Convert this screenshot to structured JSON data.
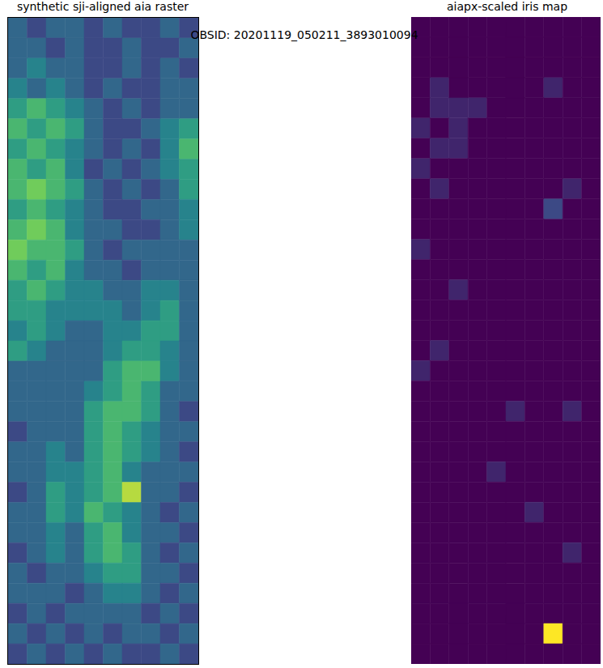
{
  "title": "OBSID: 20201119_050211_3893010094",
  "chart_data": [
    {
      "type": "heatmap",
      "title": "synthetic sji-aligned aia raster",
      "tick_labels": false,
      "color_range": [
        0,
        9
      ],
      "cells": [
        [
          3,
          2,
          3,
          3,
          2,
          3,
          2,
          2,
          3,
          2
        ],
        [
          3,
          3,
          2,
          3,
          2,
          2,
          3,
          2,
          2,
          3
        ],
        [
          3,
          4,
          3,
          3,
          2,
          2,
          3,
          2,
          3,
          2
        ],
        [
          4,
          3,
          4,
          3,
          2,
          3,
          2,
          2,
          3,
          3
        ],
        [
          5,
          6,
          5,
          4,
          3,
          2,
          3,
          2,
          3,
          3
        ],
        [
          6,
          5,
          6,
          5,
          3,
          2,
          2,
          3,
          4,
          5
        ],
        [
          5,
          6,
          5,
          4,
          3,
          2,
          3,
          2,
          4,
          6
        ],
        [
          6,
          5,
          6,
          4,
          2,
          3,
          2,
          3,
          4,
          5
        ],
        [
          6,
          7,
          6,
          5,
          3,
          2,
          3,
          2,
          3,
          5
        ],
        [
          5,
          6,
          5,
          4,
          3,
          2,
          2,
          3,
          3,
          4
        ],
        [
          6,
          7,
          6,
          4,
          3,
          3,
          2,
          2,
          3,
          4
        ],
        [
          7,
          6,
          6,
          5,
          3,
          2,
          3,
          3,
          3,
          3
        ],
        [
          6,
          5,
          6,
          4,
          3,
          3,
          2,
          3,
          3,
          3
        ],
        [
          5,
          6,
          5,
          4,
          4,
          3,
          3,
          4,
          4,
          3
        ],
        [
          5,
          5,
          4,
          4,
          4,
          4,
          3,
          4,
          5,
          3
        ],
        [
          4,
          5,
          4,
          3,
          3,
          4,
          4,
          5,
          5,
          3
        ],
        [
          5,
          4,
          3,
          3,
          3,
          4,
          5,
          5,
          4,
          3
        ],
        [
          3,
          3,
          3,
          3,
          3,
          5,
          6,
          6,
          4,
          3
        ],
        [
          3,
          3,
          3,
          3,
          4,
          5,
          6,
          5,
          3,
          3
        ],
        [
          3,
          3,
          3,
          3,
          5,
          6,
          6,
          5,
          3,
          2
        ],
        [
          2,
          3,
          3,
          3,
          5,
          6,
          5,
          4,
          3,
          3
        ],
        [
          3,
          3,
          4,
          3,
          5,
          6,
          5,
          4,
          3,
          2
        ],
        [
          3,
          3,
          4,
          4,
          5,
          6,
          4,
          3,
          3,
          3
        ],
        [
          2,
          3,
          5,
          4,
          5,
          6,
          8,
          3,
          3,
          2
        ],
        [
          3,
          3,
          5,
          4,
          6,
          5,
          4,
          3,
          2,
          3
        ],
        [
          3,
          3,
          4,
          3,
          5,
          6,
          4,
          3,
          3,
          2
        ],
        [
          2,
          3,
          4,
          3,
          5,
          6,
          5,
          3,
          2,
          3
        ],
        [
          3,
          2,
          3,
          3,
          4,
          5,
          5,
          3,
          3,
          2
        ],
        [
          3,
          3,
          3,
          2,
          3,
          4,
          4,
          3,
          2,
          3
        ],
        [
          2,
          3,
          2,
          3,
          3,
          3,
          3,
          2,
          3,
          2
        ],
        [
          3,
          2,
          3,
          2,
          3,
          2,
          3,
          3,
          2,
          3
        ],
        [
          2,
          3,
          2,
          3,
          2,
          3,
          2,
          2,
          3,
          2
        ]
      ]
    },
    {
      "type": "heatmap",
      "title": "aiapx-scaled iris map",
      "tick_labels": false,
      "color_range": [
        0,
        9
      ],
      "cells": [
        [
          0,
          0,
          0,
          0,
          0,
          0,
          0,
          0,
          0,
          0
        ],
        [
          0,
          0,
          0,
          0,
          0,
          0,
          0,
          0,
          0,
          0
        ],
        [
          0,
          0,
          0,
          0,
          0,
          0,
          0,
          0,
          0,
          0
        ],
        [
          0,
          1,
          0,
          0,
          0,
          0,
          0,
          1,
          0,
          0
        ],
        [
          0,
          1,
          1,
          1,
          0,
          0,
          0,
          0,
          0,
          0
        ],
        [
          1,
          0,
          1,
          0,
          0,
          0,
          0,
          0,
          0,
          0
        ],
        [
          0,
          1,
          1,
          0,
          0,
          0,
          0,
          0,
          0,
          0
        ],
        [
          1,
          0,
          0,
          0,
          0,
          0,
          0,
          0,
          0,
          0
        ],
        [
          0,
          1,
          0,
          0,
          0,
          0,
          0,
          0,
          1,
          0
        ],
        [
          0,
          0,
          0,
          0,
          0,
          0,
          0,
          2,
          0,
          0
        ],
        [
          0,
          0,
          0,
          0,
          0,
          0,
          0,
          0,
          0,
          0
        ],
        [
          1,
          0,
          0,
          0,
          0,
          0,
          0,
          0,
          0,
          0
        ],
        [
          0,
          0,
          0,
          0,
          0,
          0,
          0,
          0,
          0,
          0
        ],
        [
          0,
          0,
          1,
          0,
          0,
          0,
          0,
          0,
          0,
          0
        ],
        [
          0,
          0,
          0,
          0,
          0,
          0,
          0,
          0,
          0,
          0
        ],
        [
          0,
          0,
          0,
          0,
          0,
          0,
          0,
          0,
          0,
          0
        ],
        [
          0,
          1,
          0,
          0,
          0,
          0,
          0,
          0,
          0,
          0
        ],
        [
          1,
          0,
          0,
          0,
          0,
          0,
          0,
          0,
          0,
          0
        ],
        [
          0,
          0,
          0,
          0,
          0,
          0,
          0,
          0,
          0,
          0
        ],
        [
          0,
          0,
          0,
          0,
          0,
          1,
          0,
          0,
          1,
          0
        ],
        [
          0,
          0,
          0,
          0,
          0,
          0,
          0,
          0,
          0,
          0
        ],
        [
          0,
          0,
          0,
          0,
          0,
          0,
          0,
          0,
          0,
          0
        ],
        [
          0,
          0,
          0,
          0,
          1,
          0,
          0,
          0,
          0,
          0
        ],
        [
          0,
          0,
          0,
          0,
          0,
          0,
          0,
          0,
          0,
          0
        ],
        [
          0,
          0,
          0,
          0,
          0,
          0,
          1,
          0,
          0,
          0
        ],
        [
          0,
          0,
          0,
          0,
          0,
          0,
          0,
          0,
          0,
          0
        ],
        [
          0,
          0,
          0,
          0,
          0,
          0,
          0,
          0,
          1,
          0
        ],
        [
          0,
          0,
          0,
          0,
          0,
          0,
          0,
          0,
          0,
          0
        ],
        [
          0,
          0,
          0,
          0,
          0,
          0,
          0,
          0,
          0,
          0
        ],
        [
          0,
          0,
          0,
          0,
          0,
          0,
          0,
          0,
          0,
          0
        ],
        [
          0,
          0,
          0,
          0,
          0,
          0,
          0,
          9,
          0,
          0
        ],
        [
          0,
          0,
          0,
          0,
          0,
          0,
          0,
          0,
          0,
          0
        ]
      ]
    }
  ]
}
